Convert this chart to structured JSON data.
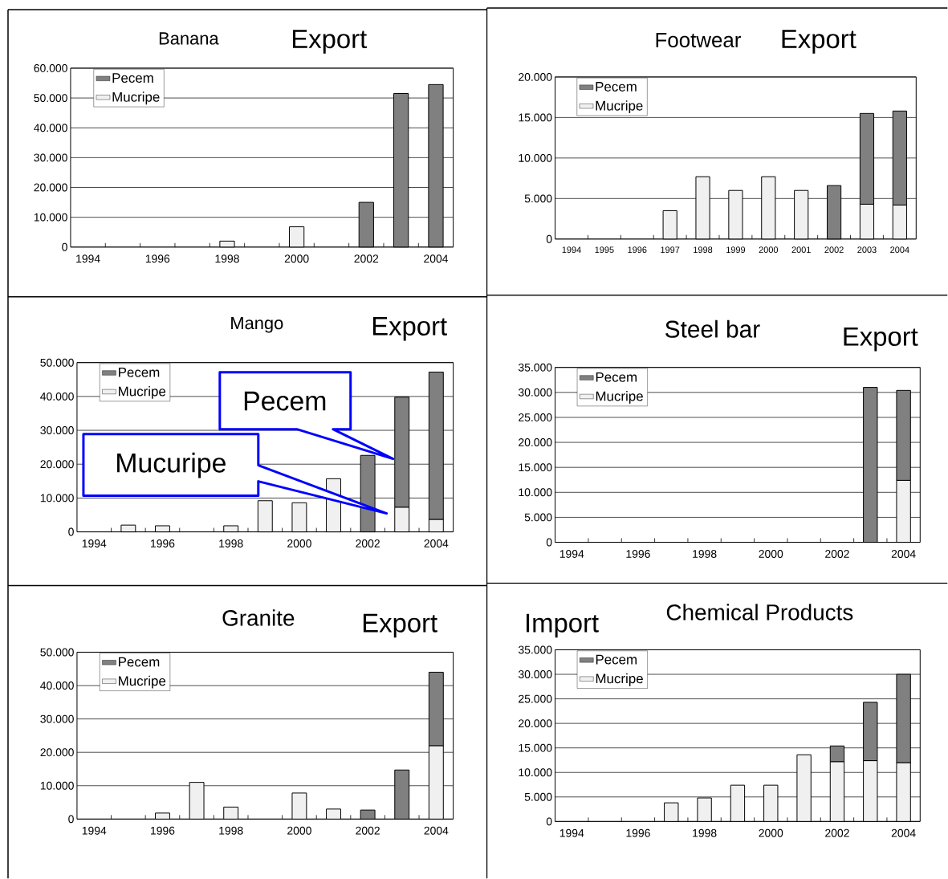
{
  "chart_data": [
    {
      "type": "bar",
      "stacked": true,
      "title": "Banana",
      "subtitle": "Export",
      "categories": [
        "1994",
        null,
        "1996",
        null,
        "1998",
        null,
        "2000",
        null,
        "2002",
        null,
        "2004"
      ],
      "series": [
        {
          "name": "Mucripe",
          "color": "#f0f0f0",
          "values": [
            null,
            null,
            null,
            null,
            2000,
            null,
            6800,
            null,
            null,
            null,
            null
          ]
        },
        {
          "name": "Pecem",
          "color": "#808080",
          "values": [
            null,
            null,
            null,
            null,
            null,
            null,
            null,
            null,
            15000,
            51500,
            54500
          ]
        }
      ],
      "ylim": [
        0,
        60000
      ],
      "yticks": [
        0,
        {
          "value": 10000,
          "label": "10.000"
        },
        {
          "value": 20000,
          "label": "20.000"
        },
        {
          "value": 30000,
          "label": "30.000"
        },
        {
          "value": 40000,
          "label": "40.000"
        },
        {
          "value": 50000,
          "label": "50.000"
        },
        {
          "value": 60000,
          "label": "60.000"
        }
      ],
      "grid": "y",
      "legend": "top left"
    },
    {
      "type": "bar",
      "stacked": true,
      "title": "Footwear",
      "subtitle": "Export",
      "categories": [
        "1994",
        "1995",
        "1996",
        "1997",
        "1998",
        "1999",
        "2000",
        "2001",
        "2002",
        "2003",
        "2004"
      ],
      "series": [
        {
          "name": "Mucripe",
          "color": "#f0f0f0",
          "values": [
            null,
            null,
            null,
            3500,
            7700,
            6000,
            7700,
            6000,
            null,
            4300,
            4200
          ]
        },
        {
          "name": "Pecem",
          "color": "#808080",
          "values": [
            null,
            null,
            null,
            null,
            null,
            null,
            null,
            null,
            6600,
            11200,
            11600
          ]
        }
      ],
      "ylim": [
        0,
        20000
      ],
      "yticks": [
        0,
        {
          "value": 5000,
          "label": "5.000"
        },
        {
          "value": 10000,
          "label": "10.000"
        },
        {
          "value": 15000,
          "label": "15.000"
        },
        {
          "value": 20000,
          "label": "20.000"
        }
      ],
      "grid": "y",
      "legend": "top left"
    },
    {
      "type": "bar",
      "stacked": true,
      "title": "Mango",
      "subtitle": "Export",
      "categories": [
        "1994",
        null,
        "1996",
        null,
        "1998",
        null,
        "2000",
        null,
        "2002",
        null,
        "2004"
      ],
      "series": [
        {
          "name": "Mucripe",
          "color": "#f0f0f0",
          "values": [
            null,
            2000,
            1800,
            null,
            1800,
            9200,
            8600,
            15700,
            null,
            7300,
            3700
          ]
        },
        {
          "name": "Pecem",
          "color": "#808080",
          "values": [
            null,
            null,
            null,
            null,
            null,
            null,
            null,
            null,
            22600,
            32500,
            43500
          ]
        }
      ],
      "ylim": [
        0,
        50000
      ],
      "yticks": [
        0,
        {
          "value": 10000,
          "label": "10.000"
        },
        {
          "value": 20000,
          "label": "20.000"
        },
        {
          "value": 30000,
          "label": "30.000"
        },
        {
          "value": 40000,
          "label": "40.000"
        },
        {
          "value": 50000,
          "label": "50.000"
        }
      ],
      "grid": "y",
      "legend": "top left",
      "annotations": [
        "Pecem",
        "Mucuripe"
      ]
    },
    {
      "type": "bar",
      "stacked": true,
      "title": "Steel bar",
      "subtitle": "Export",
      "categories": [
        "1994",
        null,
        "1996",
        null,
        "1998",
        null,
        "2000",
        null,
        "2002",
        null,
        "2004"
      ],
      "series": [
        {
          "name": "Mucripe",
          "color": "#f0f0f0",
          "values": [
            null,
            null,
            null,
            null,
            null,
            null,
            null,
            null,
            null,
            null,
            12400
          ]
        },
        {
          "name": "Pecem",
          "color": "#808080",
          "values": [
            null,
            null,
            null,
            null,
            null,
            null,
            null,
            null,
            null,
            31000,
            18000
          ]
        }
      ],
      "ylim": [
        0,
        35000
      ],
      "yticks": [
        0,
        {
          "value": 5000,
          "label": "5.000"
        },
        {
          "value": 10000,
          "label": "10.000"
        },
        {
          "value": 15000,
          "label": "15.000"
        },
        {
          "value": 20000,
          "label": "20.000"
        },
        {
          "value": 25000,
          "label": "25.000"
        },
        {
          "value": 30000,
          "label": "30.000"
        },
        {
          "value": 35000,
          "label": "35.000"
        }
      ],
      "grid": "y",
      "legend": "top left"
    },
    {
      "type": "bar",
      "stacked": true,
      "title": "Granite",
      "subtitle": "Export",
      "categories": [
        "1994",
        null,
        "1996",
        null,
        "1998",
        null,
        "2000",
        null,
        "2002",
        null,
        "2004"
      ],
      "series": [
        {
          "name": "Mucripe",
          "color": "#f0f0f0",
          "values": [
            null,
            null,
            1800,
            11000,
            3600,
            null,
            7800,
            3000,
            null,
            null,
            22000
          ]
        },
        {
          "name": "Pecem",
          "color": "#808080",
          "values": [
            null,
            null,
            null,
            null,
            null,
            null,
            null,
            null,
            2700,
            14700,
            22000
          ]
        }
      ],
      "ylim": [
        0,
        50000
      ],
      "yticks": [
        0,
        {
          "value": 10000,
          "label": "10.000"
        },
        {
          "value": 20000,
          "label": "20.000"
        },
        {
          "value": 30000,
          "label": "30.000"
        },
        {
          "value": 40000,
          "label": "40.000"
        },
        {
          "value": 50000,
          "label": "50.000"
        }
      ],
      "grid": "y",
      "legend": "top left"
    },
    {
      "type": "bar",
      "stacked": true,
      "title": "Chemical Products",
      "subtitle": "Import",
      "categories": [
        "1994",
        null,
        "1996",
        null,
        "1998",
        null,
        "2000",
        null,
        "2002",
        null,
        "2004"
      ],
      "series": [
        {
          "name": "Mucripe",
          "color": "#f0f0f0",
          "values": [
            null,
            null,
            null,
            3800,
            4800,
            7400,
            7400,
            13600,
            12200,
            12400,
            12000
          ]
        },
        {
          "name": "Pecem",
          "color": "#808080",
          "values": [
            null,
            null,
            null,
            null,
            null,
            null,
            null,
            null,
            3200,
            11900,
            18000
          ]
        }
      ],
      "ylim": [
        0,
        35000
      ],
      "yticks": [
        0,
        {
          "value": 5000,
          "label": "5.000"
        },
        {
          "value": 10000,
          "label": "10.000"
        },
        {
          "value": 15000,
          "label": "15.000"
        },
        {
          "value": 20000,
          "label": "20.000"
        },
        {
          "value": 25000,
          "label": "25.000"
        },
        {
          "value": 30000,
          "label": "30.000"
        },
        {
          "value": 35000,
          "label": "35.000"
        }
      ],
      "grid": "y",
      "legend": "top left"
    }
  ]
}
